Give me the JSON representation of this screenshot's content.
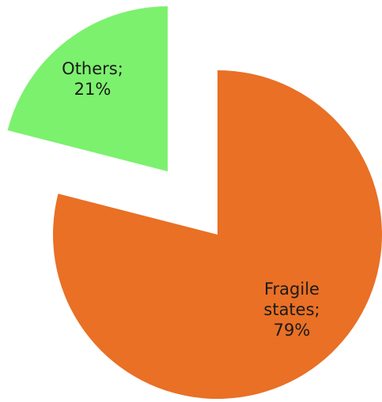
{
  "chart_data": {
    "type": "pie",
    "slices": [
      {
        "label": "Fragile states",
        "value": 79,
        "label_lines": [
          "Fragile",
          "states;",
          "79%"
        ],
        "color": "#E97025"
      },
      {
        "label": "Others",
        "value": 21,
        "label_lines": [
          "Others;",
          "21%"
        ],
        "color": "#7CF16E"
      }
    ],
    "exploded": true,
    "legend": "none",
    "data_labels": "inside"
  }
}
